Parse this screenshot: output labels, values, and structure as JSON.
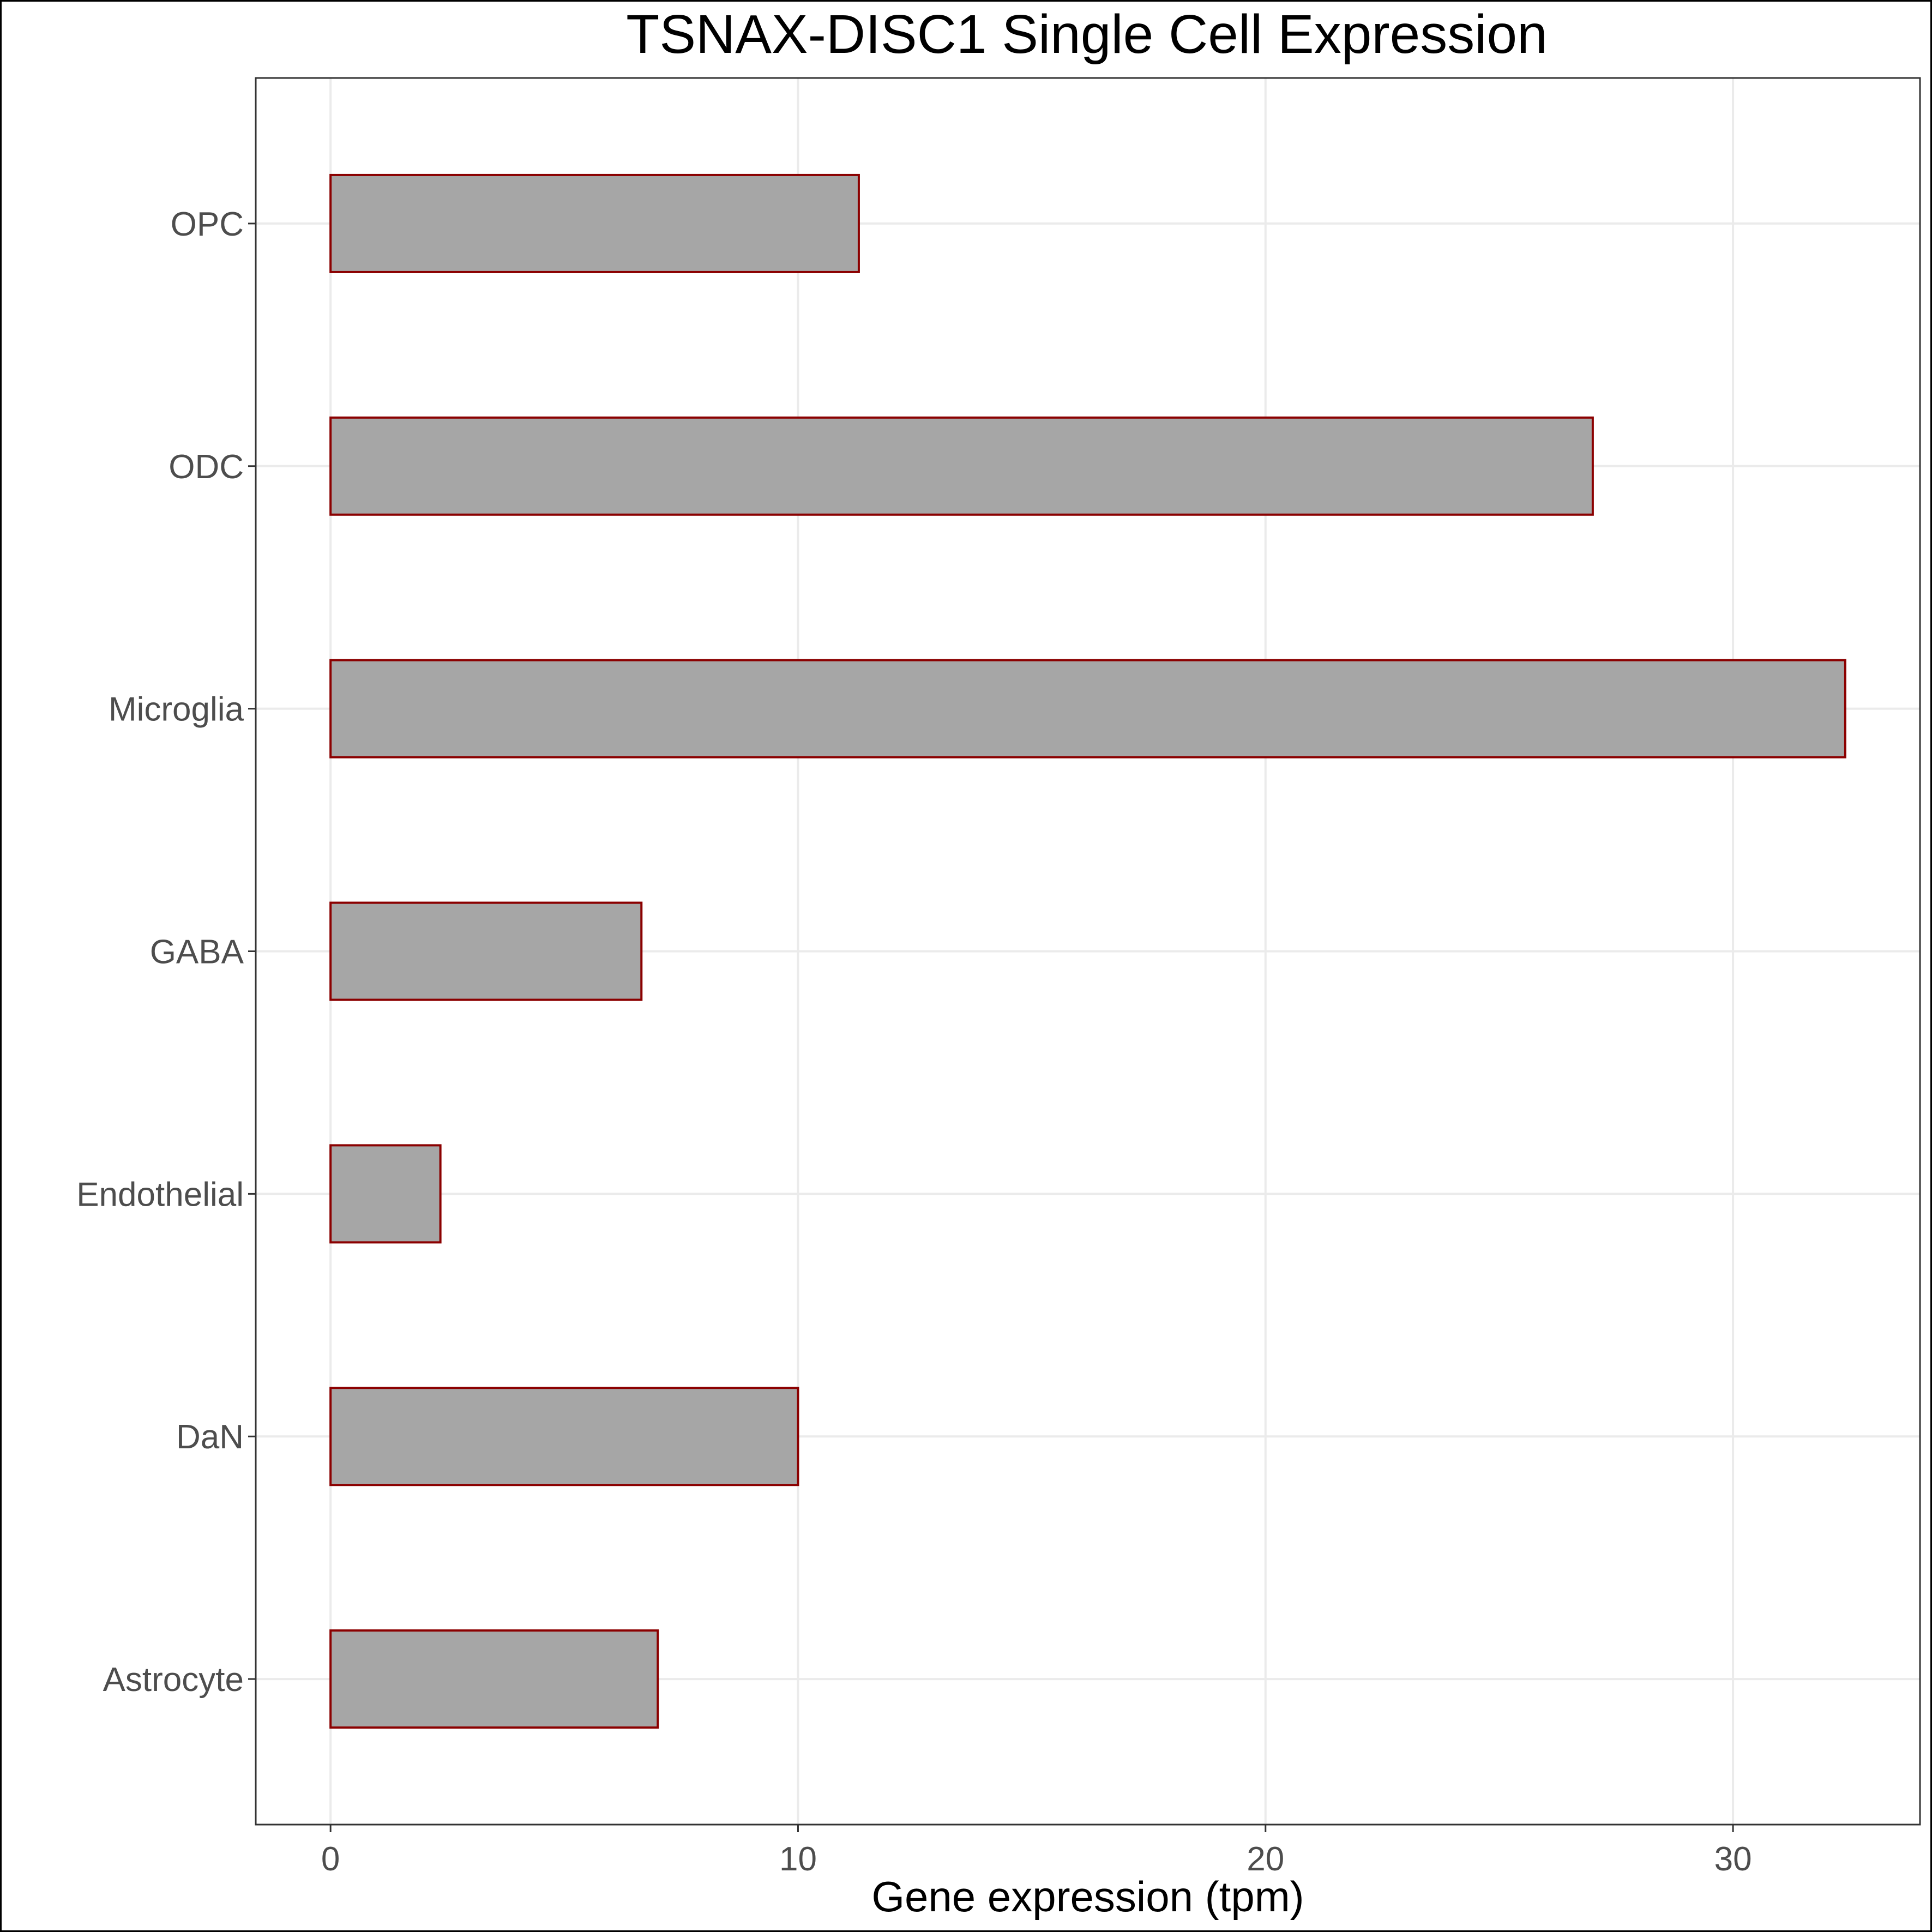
{
  "chart_data": {
    "type": "bar",
    "orientation": "horizontal",
    "title": "TSNAX-DISC1 Single Cell Expression",
    "xlabel": "Gene expression (tpm)",
    "ylabel": "",
    "categories": [
      "Astrocyte",
      "DaN",
      "Endothelial",
      "GABA",
      "Microglia",
      "ODC",
      "OPC"
    ],
    "values": [
      7.0,
      10.0,
      2.35,
      6.65,
      32.4,
      27.0,
      11.3
    ],
    "xlim": [
      -1.6,
      34.0
    ],
    "xticks": [
      0,
      10,
      20,
      30
    ],
    "xtick_labels": [
      "0",
      "10",
      "20",
      "30"
    ],
    "grid": true,
    "legend": "none",
    "colors": {
      "bar_fill": "#a6a6a6",
      "bar_stroke": "#8b0000",
      "grid": "#ebebeb",
      "panel_border": "#333333",
      "tick_label": "#4d4d4d",
      "text": "#000000"
    }
  }
}
